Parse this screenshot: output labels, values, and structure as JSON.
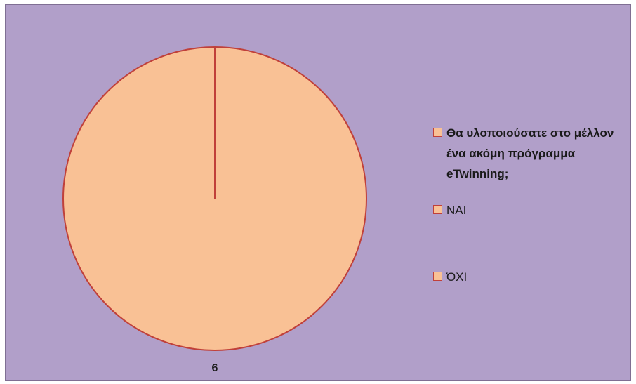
{
  "chart_data": {
    "type": "pie",
    "title": "",
    "categories": [
      "Θα υλοποιούσατε στο μέλλον ένα ακόμη πρόγραμμα eTwinning;",
      "ΝΑΙ",
      "ΌΧΙ"
    ],
    "values": [
      0,
      6,
      0
    ],
    "data_labels": [
      "",
      "6",
      ""
    ],
    "legend": "right",
    "colors": {
      "background": "#b19fc9",
      "slice_fill": "#f9c195",
      "slice_stroke": "#c0403a",
      "legend_swatch_fill": "#f9c195",
      "legend_swatch_stroke": "#c0403a"
    }
  }
}
